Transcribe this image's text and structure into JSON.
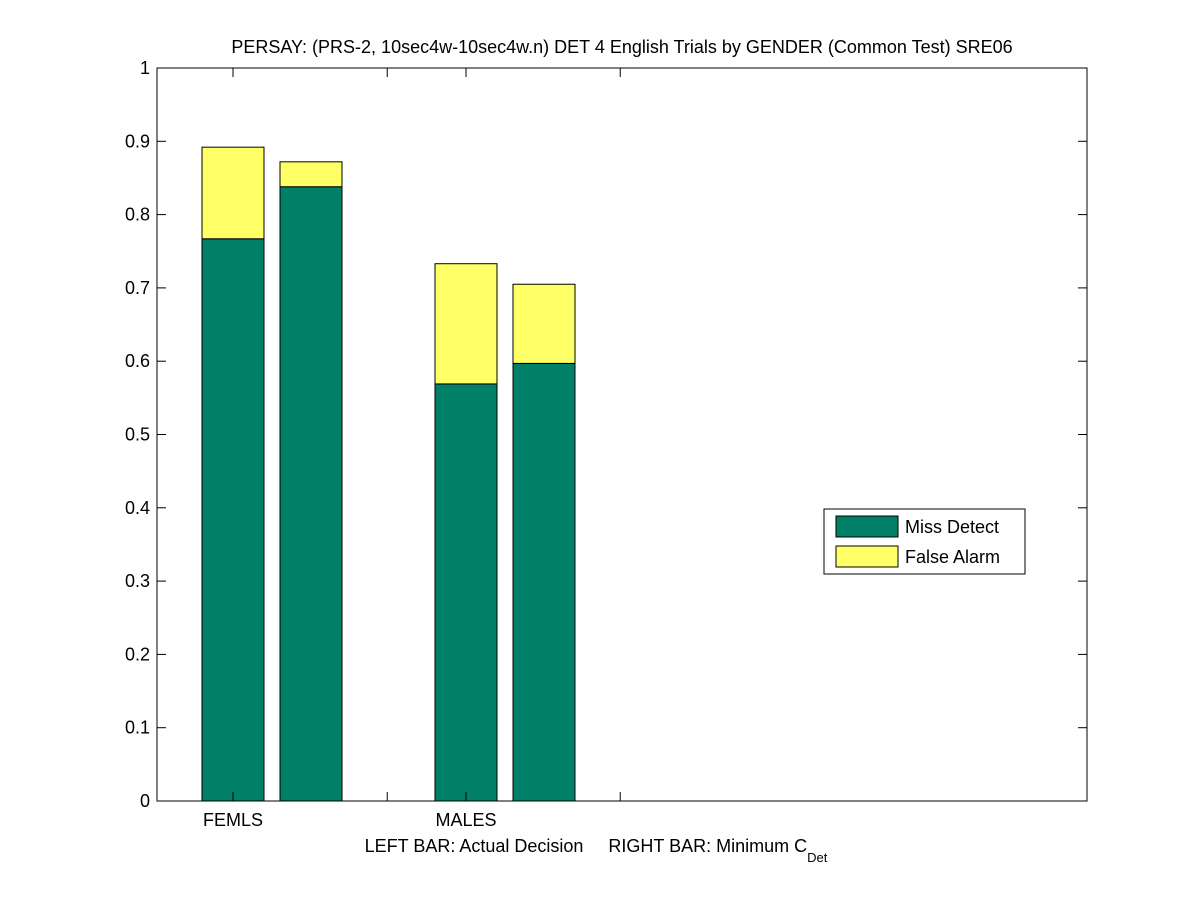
{
  "chart_data": {
    "type": "bar",
    "stacked": true,
    "title": "PERSAY: (PRS-2, 10sec4w-10sec4w.n) DET 4 English Trials by GENDER (Common Test) SRE06",
    "xlabel_left": "LEFT BAR: Actual Decision",
    "xlabel_right_main": "RIGHT BAR: Minimum C",
    "xlabel_right_sub": "Det",
    "categories": [
      "FEMLS",
      "MALES"
    ],
    "ylim": [
      0,
      1
    ],
    "yticks": [
      0,
      0.1,
      0.2,
      0.3,
      0.4,
      0.5,
      0.6,
      0.7,
      0.8,
      0.9,
      1
    ],
    "ytick_labels": [
      "0",
      "0.1",
      "0.2",
      "0.3",
      "0.4",
      "0.5",
      "0.6",
      "0.7",
      "0.8",
      "0.9",
      "1"
    ],
    "bars": [
      {
        "category": "FEMLS",
        "position": "left",
        "miss_detect": 0.767,
        "false_alarm": 0.125
      },
      {
        "category": "FEMLS",
        "position": "right",
        "miss_detect": 0.838,
        "false_alarm": 0.034
      },
      {
        "category": "MALES",
        "position": "left",
        "miss_detect": 0.569,
        "false_alarm": 0.164
      },
      {
        "category": "MALES",
        "position": "right",
        "miss_detect": 0.597,
        "false_alarm": 0.108
      }
    ],
    "series": [
      {
        "name": "Miss Detect",
        "color": "#008066"
      },
      {
        "name": "False Alarm",
        "color": "#ffff66"
      }
    ],
    "legend_position": "center-right",
    "grid": false
  }
}
